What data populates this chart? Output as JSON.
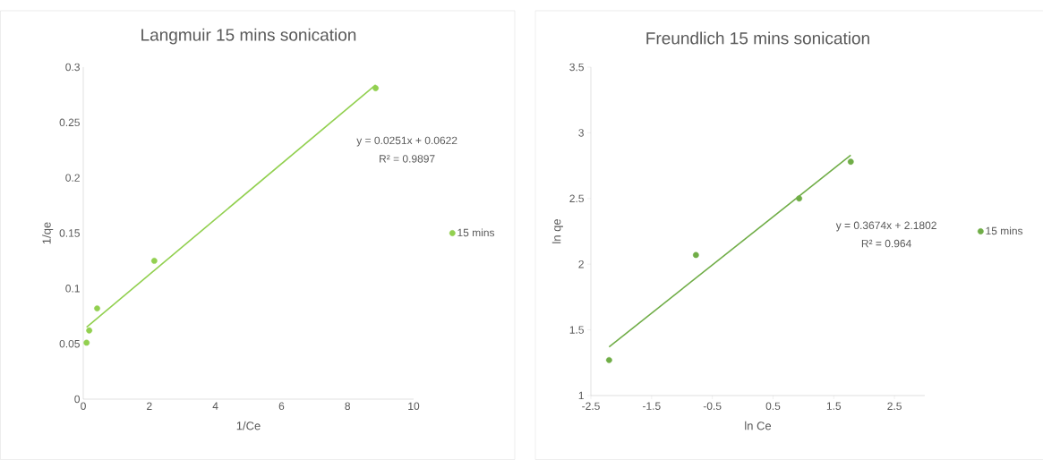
{
  "chart_data": [
    {
      "type": "scatter",
      "title": "Langmuir 15 mins sonication",
      "xlabel": "1/Ce",
      "ylabel": "1/qe",
      "xlim": [
        0,
        10
      ],
      "xticks": [
        0,
        2,
        4,
        6,
        8,
        10
      ],
      "ylim": [
        0,
        0.3
      ],
      "yticks": [
        0,
        0.05,
        0.1,
        0.15,
        0.2,
        0.25,
        0.3
      ],
      "grid": false,
      "legend": "right",
      "series": [
        {
          "name": "15 mins",
          "color": "#92d050",
          "marker": "circle",
          "x": [
            0.1,
            0.18,
            0.42,
            2.15,
            8.85
          ],
          "values": [
            0.051,
            0.062,
            0.082,
            0.125,
            0.281
          ]
        },
        {
          "type": "line",
          "color": "#92d050",
          "marker": "none",
          "x": [
            0.1,
            8.85
          ],
          "values": [
            0.065,
            0.284
          ]
        }
      ],
      "annotations": [
        "y = 0.0251x + 0.0622",
        "R² = 0.9897"
      ]
    },
    {
      "type": "scatter",
      "title": "Freundlich 15 mins sonication",
      "xlabel": "ln Ce",
      "ylabel": "ln qe",
      "xlim": [
        -2.5,
        3.0
      ],
      "xticks": [
        -2.5,
        -1.5,
        -0.5,
        0.5,
        1.5,
        2.5
      ],
      "ylim": [
        1,
        3.5
      ],
      "yticks": [
        1,
        1.5,
        2,
        2.5,
        3,
        3.5
      ],
      "grid": false,
      "legend": "right",
      "series": [
        {
          "name": "15 mins",
          "color": "#70ad47",
          "marker": "circle",
          "x": [
            -2.2,
            -0.77,
            0.93,
            1.78
          ],
          "values": [
            1.27,
            2.07,
            2.5,
            2.78
          ]
        },
        {
          "type": "line",
          "color": "#70ad47",
          "marker": "none",
          "x": [
            -2.2,
            1.78
          ],
          "values": [
            1.37,
            2.83
          ]
        }
      ],
      "annotations": [
        "y = 0.3674x + 2.1802",
        "R² = 0.964"
      ]
    }
  ]
}
